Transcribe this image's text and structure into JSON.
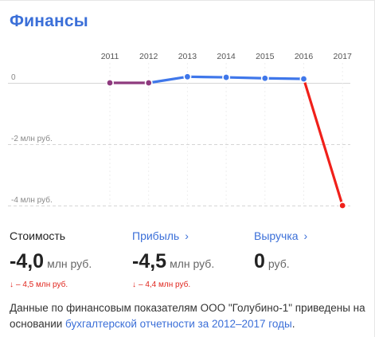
{
  "header": {
    "title": "Финансы"
  },
  "chart_data": {
    "type": "line",
    "x": [
      "2011",
      "2012",
      "2013",
      "2014",
      "2015",
      "2016",
      "2017"
    ],
    "y_ticks": [
      {
        "value": 0,
        "label": "0"
      },
      {
        "value": -2,
        "label": "-2 млн руб."
      },
      {
        "value": -4,
        "label": "-4 млн руб."
      }
    ],
    "values": [
      0,
      0,
      0.2,
      0.18,
      0.15,
      0.13,
      -4.0
    ],
    "ylim": [
      -4.0,
      0.2
    ],
    "unit": "млн руб.",
    "colors": {
      "early": "#8e3a7e",
      "mid": "#3f77ea",
      "drop": "#f0201a"
    }
  },
  "metrics": [
    {
      "label": "Стоимость",
      "link": false,
      "value": "-4,0",
      "unit": "млн руб.",
      "delta": "– 4,5 млн руб.",
      "delta_arrow": "↓"
    },
    {
      "label": "Прибыль",
      "link": true,
      "value": "-4,5",
      "unit": "млн руб.",
      "delta": "– 4,4 млн руб.",
      "delta_arrow": "↓"
    },
    {
      "label": "Выручка",
      "link": true,
      "value": "0",
      "unit": "руб.",
      "delta": "",
      "delta_arrow": ""
    }
  ],
  "note": {
    "text": "Данные по финансовым показателям ООО \"Голубино-1\" приведены на основании ",
    "link_text": "бухгалтерской отчетности за 2012–2017 годы",
    "end": "."
  },
  "icons": {
    "chevron": "chevron-right-icon",
    "arrow_down": "arrow-down-icon"
  }
}
